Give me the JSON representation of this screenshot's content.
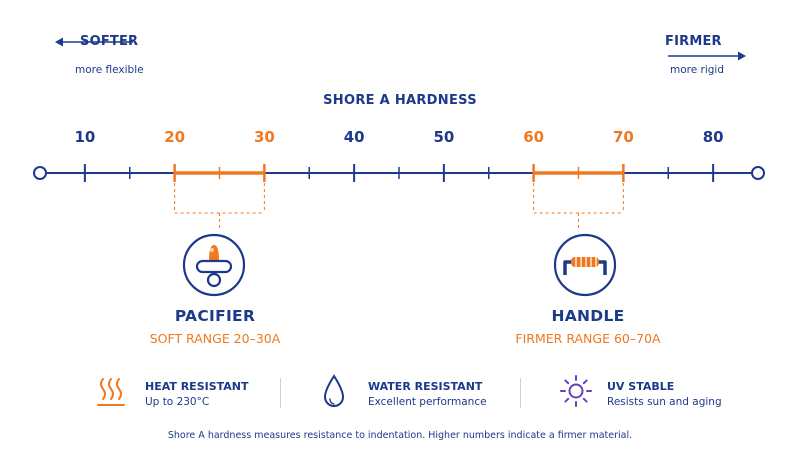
{
  "softer": {
    "label": "SOFTER",
    "sub": "more flexible"
  },
  "firmer": {
    "label": "FIRMER",
    "sub": "more rigid"
  },
  "scale": {
    "title": "SHORE A HARDNESS",
    "ticks": [
      {
        "value": "10",
        "highlight": false
      },
      {
        "value": "20",
        "highlight": true
      },
      {
        "value": "30",
        "highlight": true
      },
      {
        "value": "40",
        "highlight": false
      },
      {
        "value": "50",
        "highlight": false
      },
      {
        "value": "60",
        "highlight": true
      },
      {
        "value": "70",
        "highlight": true
      },
      {
        "value": "80",
        "highlight": false
      }
    ],
    "min": 5,
    "max": 85,
    "ranges": [
      {
        "from": 20,
        "to": 30
      },
      {
        "from": 60,
        "to": 70
      }
    ]
  },
  "products": [
    {
      "title": "PACIFIER",
      "range": "SOFT RANGE 20–30A",
      "icon": "pacifier-icon"
    },
    {
      "title": "HANDLE",
      "range": "FIRMER RANGE 60–70A",
      "icon": "handle-icon"
    }
  ],
  "features": [
    {
      "title": "HEAT RESISTANT",
      "sub": "Up to 230°C",
      "icon": "heat-icon"
    },
    {
      "title": "WATER RESISTANT",
      "sub": "Excellent performance",
      "icon": "water-drop-icon"
    },
    {
      "title": "UV STABLE",
      "sub": "Resists sun and aging",
      "icon": "sun-icon"
    }
  ],
  "footnote": "Shore A hardness measures resistance to indentation. Higher numbers indicate a firmer material.",
  "colors": {
    "navy": "#1d3a8a",
    "orange": "#f07820",
    "purple": "#6a3fc4",
    "light": "#dbe3f5"
  }
}
